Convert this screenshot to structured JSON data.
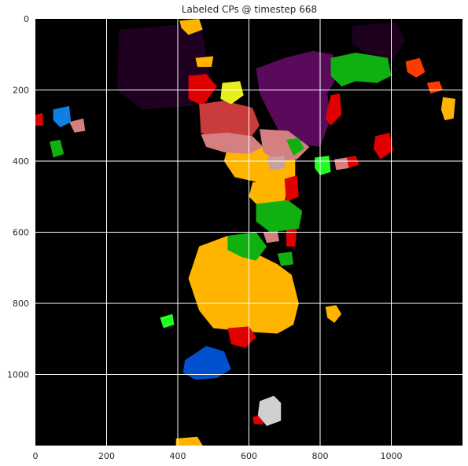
{
  "chart_data": {
    "type": "heatmap",
    "title": "Labeled CPs @ timestep 668",
    "xlabel": "",
    "ylabel": "",
    "xlim": [
      0,
      1200
    ],
    "ylim": [
      1200,
      0
    ],
    "y_inverted": true,
    "grid": true,
    "background_color": "#000000",
    "grid_color": "#ffffff",
    "x_ticks": [
      0,
      200,
      400,
      600,
      800,
      1000
    ],
    "y_ticks": [
      0,
      200,
      400,
      600,
      800,
      1000
    ],
    "regions": [
      {
        "label": "dark-purple-top",
        "color": "#200020",
        "points": [
          [
            235,
            30
          ],
          [
            420,
            15
          ],
          [
            470,
            40
          ],
          [
            490,
            160
          ],
          [
            440,
            245
          ],
          [
            300,
            255
          ],
          [
            230,
            200
          ]
        ]
      },
      {
        "label": "dark-purple-right",
        "color": "#1c001c",
        "points": [
          [
            890,
            20
          ],
          [
            1010,
            10
          ],
          [
            1040,
            60
          ],
          [
            1000,
            120
          ],
          [
            940,
            105
          ],
          [
            890,
            70
          ]
        ]
      },
      {
        "label": "purple-main",
        "color": "#5a0a5a",
        "points": [
          [
            620,
            140
          ],
          [
            700,
            110
          ],
          [
            780,
            90
          ],
          [
            835,
            100
          ],
          [
            855,
            150
          ],
          [
            820,
            210
          ],
          [
            830,
            280
          ],
          [
            800,
            360
          ],
          [
            700,
            345
          ],
          [
            660,
            270
          ],
          [
            630,
            210
          ]
        ]
      },
      {
        "label": "orange-top",
        "color": "#ffb400",
        "points": [
          [
            405,
            5
          ],
          [
            460,
            0
          ],
          [
            470,
            30
          ],
          [
            430,
            45
          ],
          [
            410,
            25
          ]
        ]
      },
      {
        "label": "orange-small-top",
        "color": "#ffb400",
        "points": [
          [
            450,
            110
          ],
          [
            500,
            105
          ],
          [
            495,
            135
          ],
          [
            455,
            135
          ]
        ]
      },
      {
        "label": "orange-right",
        "color": "#ffb400",
        "points": [
          [
            1145,
            220
          ],
          [
            1180,
            225
          ],
          [
            1175,
            280
          ],
          [
            1150,
            285
          ],
          [
            1140,
            255
          ]
        ]
      },
      {
        "label": "orange-mid",
        "color": "#ffb400",
        "points": [
          [
            540,
            360
          ],
          [
            680,
            355
          ],
          [
            730,
            390
          ],
          [
            730,
            450
          ],
          [
            650,
            465
          ],
          [
            560,
            445
          ],
          [
            530,
            400
          ]
        ]
      },
      {
        "label": "orange-col",
        "color": "#ffb400",
        "points": [
          [
            610,
            460
          ],
          [
            710,
            450
          ],
          [
            700,
            520
          ],
          [
            630,
            530
          ],
          [
            600,
            500
          ]
        ]
      },
      {
        "label": "orange-large",
        "color": "#ffb400",
        "points": [
          [
            460,
            640
          ],
          [
            540,
            610
          ],
          [
            600,
            620
          ],
          [
            620,
            660
          ],
          [
            680,
            690
          ],
          [
            720,
            720
          ],
          [
            740,
            800
          ],
          [
            725,
            860
          ],
          [
            680,
            885
          ],
          [
            600,
            880
          ],
          [
            500,
            870
          ],
          [
            460,
            820
          ],
          [
            430,
            730
          ]
        ]
      },
      {
        "label": "orange-right-small",
        "color": "#ffb400",
        "points": [
          [
            815,
            810
          ],
          [
            845,
            805
          ],
          [
            860,
            830
          ],
          [
            840,
            855
          ],
          [
            820,
            840
          ]
        ]
      },
      {
        "label": "orange-bottom",
        "color": "#ffb400",
        "points": [
          [
            395,
            1180
          ],
          [
            455,
            1175
          ],
          [
            470,
            1200
          ],
          [
            395,
            1200
          ]
        ]
      },
      {
        "label": "red-top-cluster",
        "color": "#e00000",
        "points": [
          [
            430,
            160
          ],
          [
            480,
            155
          ],
          [
            510,
            190
          ],
          [
            470,
            245
          ],
          [
            430,
            225
          ]
        ]
      },
      {
        "label": "red-right-upper",
        "color": "#e00000",
        "points": [
          [
            830,
            215
          ],
          [
            855,
            210
          ],
          [
            860,
            270
          ],
          [
            830,
            300
          ],
          [
            815,
            280
          ]
        ]
      },
      {
        "label": "red-right-mid",
        "color": "#e00000",
        "points": [
          [
            955,
            330
          ],
          [
            995,
            320
          ],
          [
            1005,
            370
          ],
          [
            970,
            395
          ],
          [
            950,
            365
          ]
        ]
      },
      {
        "label": "red-col-right",
        "color": "#e00000",
        "points": [
          [
            700,
            450
          ],
          [
            735,
            440
          ],
          [
            740,
            500
          ],
          [
            705,
            515
          ]
        ]
      },
      {
        "label": "red-mid-right",
        "color": "#e00000",
        "points": [
          [
            705,
            590
          ],
          [
            735,
            585
          ],
          [
            730,
            640
          ],
          [
            705,
            640
          ]
        ]
      },
      {
        "label": "red-lower",
        "color": "#e00000",
        "points": [
          [
            540,
            870
          ],
          [
            600,
            865
          ],
          [
            620,
            895
          ],
          [
            590,
            925
          ],
          [
            550,
            915
          ]
        ]
      },
      {
        "label": "red-small-left",
        "color": "#e00000",
        "points": [
          [
            0,
            270
          ],
          [
            20,
            265
          ],
          [
            22,
            300
          ],
          [
            0,
            300
          ]
        ]
      },
      {
        "label": "red-small-right",
        "color": "#e00000",
        "points": [
          [
            870,
            390
          ],
          [
            900,
            385
          ],
          [
            910,
            410
          ],
          [
            880,
            420
          ]
        ]
      },
      {
        "label": "red-small-bottom",
        "color": "#e00000",
        "points": [
          [
            610,
            1120
          ],
          [
            640,
            1110
          ],
          [
            640,
            1140
          ],
          [
            615,
            1140
          ]
        ]
      },
      {
        "label": "red-orange-right",
        "color": "#ff3c00",
        "points": [
          [
            1040,
            120
          ],
          [
            1080,
            110
          ],
          [
            1095,
            150
          ],
          [
            1070,
            165
          ],
          [
            1045,
            150
          ]
        ]
      },
      {
        "label": "red-orange-far",
        "color": "#ff3c00",
        "points": [
          [
            1100,
            180
          ],
          [
            1135,
            175
          ],
          [
            1145,
            200
          ],
          [
            1110,
            210
          ]
        ]
      },
      {
        "label": "salmon-red",
        "color": "#c83c3c",
        "points": [
          [
            460,
            240
          ],
          [
            530,
            230
          ],
          [
            610,
            250
          ],
          [
            630,
            300
          ],
          [
            600,
            340
          ],
          [
            520,
            350
          ],
          [
            465,
            320
          ]
        ]
      },
      {
        "label": "pink",
        "color": "#d48080",
        "points": [
          [
            465,
            325
          ],
          [
            540,
            320
          ],
          [
            610,
            330
          ],
          [
            640,
            360
          ],
          [
            600,
            380
          ],
          [
            530,
            375
          ],
          [
            480,
            360
          ]
        ]
      },
      {
        "label": "pink-right",
        "color": "#d48080",
        "points": [
          [
            630,
            310
          ],
          [
            710,
            315
          ],
          [
            770,
            360
          ],
          [
            735,
            395
          ],
          [
            680,
            400
          ],
          [
            640,
            375
          ]
        ]
      },
      {
        "label": "pink-left",
        "color": "#d48080",
        "points": [
          [
            95,
            290
          ],
          [
            135,
            280
          ],
          [
            140,
            315
          ],
          [
            110,
            320
          ]
        ]
      },
      {
        "label": "pink-right-small",
        "color": "#d48080",
        "points": [
          [
            840,
            395
          ],
          [
            875,
            390
          ],
          [
            880,
            420
          ],
          [
            845,
            425
          ]
        ]
      },
      {
        "label": "pink-mid",
        "color": "#d48080",
        "points": [
          [
            640,
            600
          ],
          [
            680,
            595
          ],
          [
            685,
            625
          ],
          [
            650,
            630
          ]
        ]
      },
      {
        "label": "light-pink",
        "color": "#c8a0a0",
        "points": [
          [
            650,
            390
          ],
          [
            700,
            385
          ],
          [
            700,
            420
          ],
          [
            660,
            425
          ]
        ]
      },
      {
        "label": "yellow-green",
        "color": "#e6f020",
        "points": [
          [
            525,
            180
          ],
          [
            575,
            175
          ],
          [
            585,
            215
          ],
          [
            550,
            240
          ],
          [
            520,
            225
          ]
        ]
      },
      {
        "label": "green-right-top",
        "color": "#10b010",
        "points": [
          [
            830,
            110
          ],
          [
            900,
            95
          ],
          [
            990,
            110
          ],
          [
            1000,
            160
          ],
          [
            960,
            180
          ],
          [
            900,
            175
          ],
          [
            860,
            190
          ],
          [
            830,
            160
          ]
        ]
      },
      {
        "label": "green-right-small",
        "color": "#10b010",
        "points": [
          [
            705,
            340
          ],
          [
            740,
            335
          ],
          [
            755,
            365
          ],
          [
            725,
            385
          ]
        ]
      },
      {
        "label": "green-mid",
        "color": "#10b010",
        "points": [
          [
            620,
            520
          ],
          [
            710,
            510
          ],
          [
            750,
            540
          ],
          [
            740,
            590
          ],
          [
            660,
            600
          ],
          [
            620,
            570
          ]
        ]
      },
      {
        "label": "green-lower-mid",
        "color": "#10b010",
        "points": [
          [
            540,
            610
          ],
          [
            620,
            600
          ],
          [
            650,
            640
          ],
          [
            620,
            680
          ],
          [
            580,
            670
          ],
          [
            540,
            650
          ]
        ]
      },
      {
        "label": "green-lower-right",
        "color": "#10b010",
        "points": [
          [
            680,
            660
          ],
          [
            720,
            655
          ],
          [
            725,
            690
          ],
          [
            690,
            695
          ]
        ]
      },
      {
        "label": "green-left",
        "color": "#10b010",
        "points": [
          [
            40,
            345
          ],
          [
            70,
            340
          ],
          [
            80,
            380
          ],
          [
            50,
            390
          ]
        ]
      },
      {
        "label": "bright-green-right",
        "color": "#20ff20",
        "points": [
          [
            785,
            390
          ],
          [
            825,
            385
          ],
          [
            830,
            430
          ],
          [
            800,
            440
          ],
          [
            785,
            420
          ]
        ]
      },
      {
        "label": "bright-green-left",
        "color": "#20ff20",
        "points": [
          [
            350,
            840
          ],
          [
            385,
            830
          ],
          [
            390,
            860
          ],
          [
            360,
            870
          ]
        ]
      },
      {
        "label": "blue-left",
        "color": "#1080e0",
        "points": [
          [
            50,
            255
          ],
          [
            95,
            245
          ],
          [
            100,
            290
          ],
          [
            70,
            305
          ],
          [
            50,
            285
          ]
        ]
      },
      {
        "label": "blue-bottom",
        "color": "#0050d0",
        "points": [
          [
            420,
            960
          ],
          [
            480,
            920
          ],
          [
            530,
            935
          ],
          [
            550,
            985
          ],
          [
            510,
            1010
          ],
          [
            450,
            1015
          ],
          [
            415,
            995
          ]
        ]
      },
      {
        "label": "light-gray-bottom",
        "color": "#d0d0d0",
        "points": [
          [
            630,
            1075
          ],
          [
            670,
            1060
          ],
          [
            690,
            1080
          ],
          [
            690,
            1130
          ],
          [
            650,
            1145
          ],
          [
            625,
            1115
          ]
        ]
      }
    ]
  }
}
